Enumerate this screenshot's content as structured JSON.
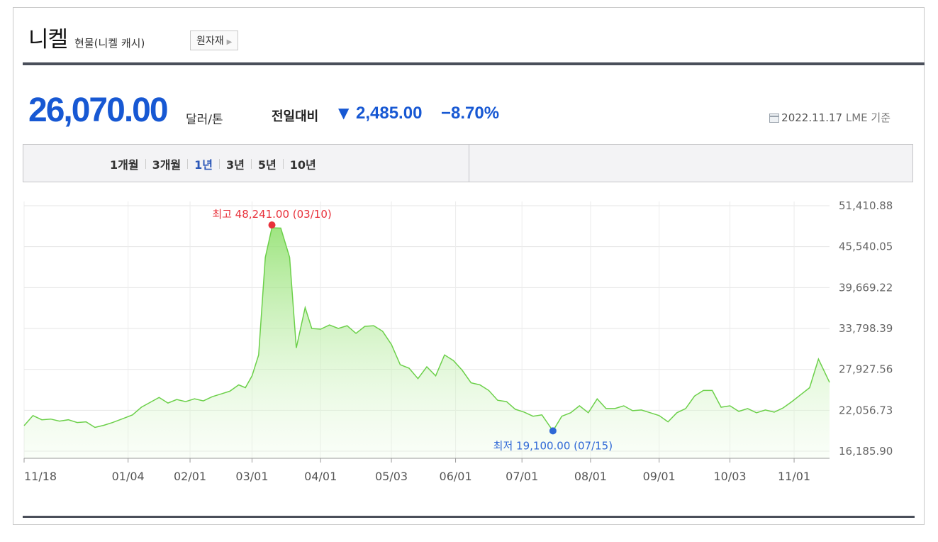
{
  "header": {
    "title": "니켈",
    "subtitle": "현물(니켈 캐시)",
    "category_button": "원자재"
  },
  "price": {
    "value": "26,070.00",
    "unit": "달러/톤",
    "compare_label": "전일대비",
    "change": "2,485.00",
    "change_pct": "−8.70%",
    "direction": "down",
    "date": "2022.11.17",
    "source": "LME 기준"
  },
  "periods": [
    "1개월",
    "3개월",
    "1년",
    "3년",
    "5년",
    "10년"
  ],
  "active_period": "1년",
  "colors": {
    "accent": "#1758d3",
    "high": "#e8303a",
    "low": "#2f68d6",
    "line": "#6cd04a"
  },
  "chart_data": {
    "type": "area",
    "x_ticks": [
      "11/18",
      "01/04",
      "02/01",
      "03/01",
      "04/01",
      "05/03",
      "06/01",
      "07/01",
      "08/01",
      "09/01",
      "10/03",
      "11/01"
    ],
    "y_ticks": [
      "51,410.88",
      "45,540.05",
      "39,669.22",
      "33,798.39",
      "27,927.56",
      "22,056.73",
      "16,185.90"
    ],
    "ylim": [
      16185.9,
      51410.88
    ],
    "grid": true,
    "high_label": "최고 48,241.00 (03/10)",
    "low_label": "최저 19,100.00 (07/15)",
    "high": {
      "date": "03/10",
      "value": 48241.0
    },
    "low": {
      "date": "07/15",
      "value": 19100.0
    },
    "series": [
      {
        "points": [
          [
            "11/18",
            19850
          ],
          [
            "11/22",
            21300
          ],
          [
            "11/26",
            20700
          ],
          [
            "11/30",
            20800
          ],
          [
            "12/04",
            20500
          ],
          [
            "12/08",
            20700
          ],
          [
            "12/12",
            20300
          ],
          [
            "12/16",
            20400
          ],
          [
            "12/20",
            19600
          ],
          [
            "12/24",
            19900
          ],
          [
            "12/28",
            20300
          ],
          [
            "01/02",
            20900
          ],
          [
            "01/06",
            21400
          ],
          [
            "01/10",
            22500
          ],
          [
            "01/14",
            23200
          ],
          [
            "01/18",
            23900
          ],
          [
            "01/22",
            23100
          ],
          [
            "01/26",
            23600
          ],
          [
            "01/30",
            23300
          ],
          [
            "02/03",
            23700
          ],
          [
            "02/07",
            23400
          ],
          [
            "02/11",
            24000
          ],
          [
            "02/15",
            24400
          ],
          [
            "02/19",
            24800
          ],
          [
            "02/23",
            25700
          ],
          [
            "02/26",
            25300
          ],
          [
            "03/01",
            27000
          ],
          [
            "03/04",
            30000
          ],
          [
            "03/07",
            44000
          ],
          [
            "03/10",
            48241
          ],
          [
            "03/14",
            48200
          ],
          [
            "03/18",
            44000
          ],
          [
            "03/21",
            31000
          ],
          [
            "03/25",
            36800
          ],
          [
            "03/28",
            33800
          ],
          [
            "04/01",
            33700
          ],
          [
            "04/05",
            34300
          ],
          [
            "04/09",
            33800
          ],
          [
            "04/13",
            34200
          ],
          [
            "04/17",
            33100
          ],
          [
            "04/21",
            34100
          ],
          [
            "04/25",
            34200
          ],
          [
            "04/29",
            33400
          ],
          [
            "05/03",
            31500
          ],
          [
            "05/07",
            28600
          ],
          [
            "05/11",
            28100
          ],
          [
            "05/15",
            26600
          ],
          [
            "05/19",
            28300
          ],
          [
            "05/23",
            27000
          ],
          [
            "05/27",
            30000
          ],
          [
            "05/31",
            29200
          ],
          [
            "06/04",
            27800
          ],
          [
            "06/08",
            26000
          ],
          [
            "06/12",
            25700
          ],
          [
            "06/16",
            24900
          ],
          [
            "06/20",
            23500
          ],
          [
            "06/24",
            23300
          ],
          [
            "06/28",
            22200
          ],
          [
            "07/02",
            21800
          ],
          [
            "07/06",
            21200
          ],
          [
            "07/10",
            21400
          ],
          [
            "07/15",
            19100
          ],
          [
            "07/19",
            21200
          ],
          [
            "07/23",
            21700
          ],
          [
            "07/27",
            22700
          ],
          [
            "07/31",
            21700
          ],
          [
            "08/04",
            23700
          ],
          [
            "08/08",
            22300
          ],
          [
            "08/12",
            22300
          ],
          [
            "08/16",
            22700
          ],
          [
            "08/20",
            22000
          ],
          [
            "08/24",
            22100
          ],
          [
            "08/28",
            21700
          ],
          [
            "09/01",
            21300
          ],
          [
            "09/05",
            20400
          ],
          [
            "09/09",
            21700
          ],
          [
            "09/13",
            22300
          ],
          [
            "09/17",
            24100
          ],
          [
            "09/21",
            24900
          ],
          [
            "09/25",
            24900
          ],
          [
            "09/29",
            22500
          ],
          [
            "10/03",
            22700
          ],
          [
            "10/07",
            21900
          ],
          [
            "10/11",
            22300
          ],
          [
            "10/15",
            21700
          ],
          [
            "10/19",
            22100
          ],
          [
            "10/23",
            21800
          ],
          [
            "10/27",
            22400
          ],
          [
            "10/31",
            23300
          ],
          [
            "11/04",
            24300
          ],
          [
            "11/08",
            25300
          ],
          [
            "11/12",
            29400
          ],
          [
            "11/17",
            26070
          ]
        ]
      }
    ]
  }
}
